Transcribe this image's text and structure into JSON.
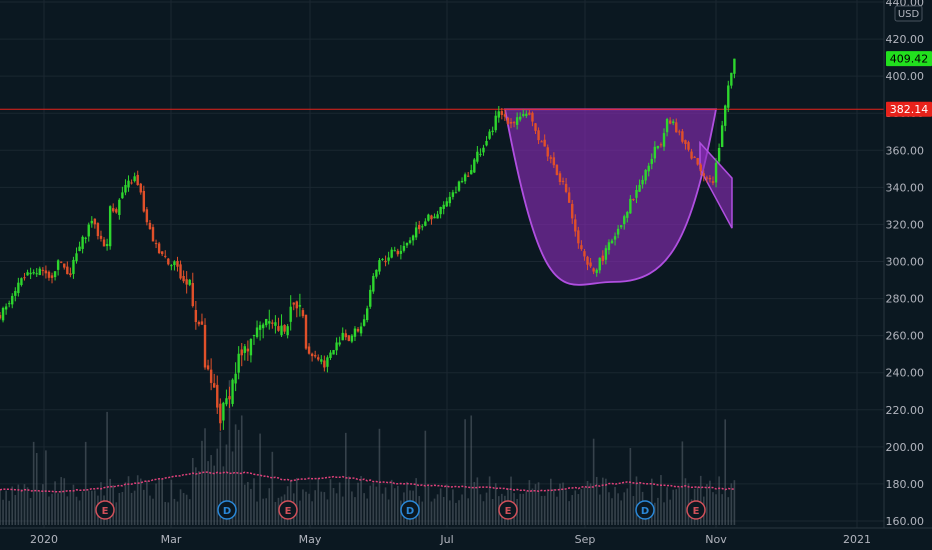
{
  "currency": "USD",
  "chart_data": {
    "type": "candlestick",
    "title": "",
    "ylim": [
      160,
      440
    ],
    "yticks": [
      160,
      180,
      200,
      220,
      240,
      260,
      280,
      300,
      320,
      340,
      360,
      380,
      400,
      420,
      440
    ],
    "ytick_labels": [
      "160.00",
      "180.00",
      "200.00",
      "220.00",
      "240.00",
      "260.00",
      "280.00",
      "300.00",
      "320.00",
      "340.00",
      "360.00",
      "380.00",
      "400.00",
      "420.00",
      "440.00"
    ],
    "xticks": [
      "2020",
      "Mar",
      "May",
      "Jul",
      "Sep",
      "Nov",
      "2021"
    ],
    "grid": true,
    "colors": {
      "background": "#0b1821",
      "grid": "#1b2731",
      "up": "#2ed62e",
      "down": "#e0502a",
      "volume": "#5b6670",
      "volume_ma": "#e0407a",
      "resistance": "#e8221b",
      "pattern_fill": "#8a2bb8",
      "pattern_stroke": "#b04fe0",
      "last_price": "#22e01e",
      "event_earnings": "#d0505a",
      "event_dividend": "#2a88d8"
    },
    "last_price": 409.42,
    "last_price_label": "409.42",
    "resistance_level": 382.14,
    "resistance_label": "382.14",
    "pattern": {
      "name": "cup and handle",
      "cup_rim": 382.14,
      "cup_bottom": 289,
      "handle_top": [
        364,
        345
      ],
      "handle_bottom": [
        350,
        318
      ]
    },
    "events": [
      {
        "type": "earnings",
        "label": "E",
        "date": "Jan-28"
      },
      {
        "type": "dividend",
        "label": "D",
        "date": "Apr-10"
      },
      {
        "type": "earnings",
        "label": "E",
        "date": "Apr-30"
      },
      {
        "type": "dividend",
        "label": "D",
        "date": "Jun-28"
      },
      {
        "type": "earnings",
        "label": "E",
        "date": "Aug-12"
      },
      {
        "type": "dividend",
        "label": "D",
        "date": "Sep-28"
      },
      {
        "type": "earnings",
        "label": "E",
        "date": "Oct-20"
      }
    ],
    "price_path": [
      [
        0,
        270
      ],
      [
        4,
        283
      ],
      [
        8,
        293
      ],
      [
        10,
        292
      ],
      [
        13,
        295
      ],
      [
        16,
        290
      ],
      [
        19,
        300
      ],
      [
        20,
        298
      ],
      [
        23,
        294
      ],
      [
        25,
        304
      ],
      [
        28,
        315
      ],
      [
        30,
        323
      ],
      [
        31,
        318
      ],
      [
        33,
        312
      ],
      [
        35,
        308
      ],
      [
        36,
        330
      ],
      [
        38,
        328
      ],
      [
        40,
        337
      ],
      [
        42,
        342
      ],
      [
        44,
        345
      ],
      [
        46,
        336
      ],
      [
        48,
        320
      ],
      [
        51,
        308
      ],
      [
        53,
        305
      ],
      [
        55,
        300
      ],
      [
        57,
        300
      ],
      [
        59,
        292
      ],
      [
        61,
        287
      ],
      [
        62,
        290
      ],
      [
        64,
        270
      ],
      [
        66,
        262
      ],
      [
        67,
        244
      ],
      [
        69,
        232
      ],
      [
        70,
        230
      ],
      [
        71,
        222
      ],
      [
        72,
        215
      ],
      [
        74,
        225
      ],
      [
        76,
        235
      ],
      [
        78,
        248
      ],
      [
        80,
        250
      ],
      [
        82,
        260
      ],
      [
        84,
        262
      ],
      [
        86,
        268
      ],
      [
        88,
        272
      ],
      [
        90,
        266
      ],
      [
        92,
        262
      ],
      [
        94,
        268
      ],
      [
        96,
        275
      ],
      [
        98,
        280
      ],
      [
        100,
        255
      ],
      [
        102,
        250
      ],
      [
        104,
        248
      ],
      [
        106,
        245
      ],
      [
        108,
        250
      ],
      [
        110,
        255
      ],
      [
        112,
        262
      ],
      [
        114,
        258
      ],
      [
        116,
        262
      ],
      [
        118,
        265
      ],
      [
        120,
        275
      ],
      [
        122,
        290
      ],
      [
        124,
        300
      ],
      [
        126,
        300
      ],
      [
        128,
        307
      ],
      [
        130,
        305
      ],
      [
        132,
        308
      ],
      [
        134,
        312
      ],
      [
        136,
        318
      ],
      [
        138,
        320
      ],
      [
        140,
        326
      ],
      [
        142,
        322
      ],
      [
        144,
        328
      ],
      [
        146,
        332
      ],
      [
        148,
        336
      ],
      [
        150,
        343
      ],
      [
        152,
        347
      ],
      [
        154,
        350
      ],
      [
        156,
        358
      ],
      [
        158,
        362
      ],
      [
        160,
        368
      ],
      [
        162,
        377
      ],
      [
        163,
        380
      ],
      [
        165,
        378
      ],
      [
        167,
        375
      ],
      [
        169,
        378
      ],
      [
        171,
        380
      ],
      [
        173,
        377
      ],
      [
        175,
        370
      ],
      [
        177,
        365
      ],
      [
        179,
        358
      ],
      [
        181,
        352
      ],
      [
        183,
        345
      ],
      [
        185,
        338
      ],
      [
        186,
        332
      ],
      [
        188,
        315
      ],
      [
        190,
        305
      ],
      [
        192,
        297
      ],
      [
        194,
        295
      ],
      [
        196,
        300
      ],
      [
        198,
        305
      ],
      [
        200,
        312
      ],
      [
        202,
        318
      ],
      [
        204,
        325
      ],
      [
        206,
        332
      ],
      [
        208,
        338
      ],
      [
        210,
        345
      ],
      [
        212,
        352
      ],
      [
        214,
        360
      ],
      [
        216,
        365
      ],
      [
        218,
        378
      ],
      [
        220,
        375
      ],
      [
        221,
        370
      ],
      [
        223,
        365
      ],
      [
        225,
        360
      ],
      [
        227,
        355
      ],
      [
        229,
        350
      ],
      [
        231,
        346
      ],
      [
        233,
        342
      ],
      [
        234,
        352
      ],
      [
        235,
        360
      ],
      [
        236,
        372
      ],
      [
        237,
        384
      ],
      [
        238,
        395
      ],
      [
        239,
        402
      ],
      [
        240,
        409.4
      ]
    ],
    "volume_ma_path": [
      [
        0,
        11
      ],
      [
        20,
        10
      ],
      [
        35,
        12
      ],
      [
        50,
        16
      ],
      [
        65,
        20
      ],
      [
        80,
        20
      ],
      [
        95,
        16
      ],
      [
        110,
        18
      ],
      [
        125,
        15
      ],
      [
        140,
        13
      ],
      [
        160,
        12
      ],
      [
        175,
        10
      ],
      [
        190,
        12
      ],
      [
        205,
        15
      ],
      [
        220,
        13
      ],
      [
        240,
        11
      ]
    ]
  }
}
